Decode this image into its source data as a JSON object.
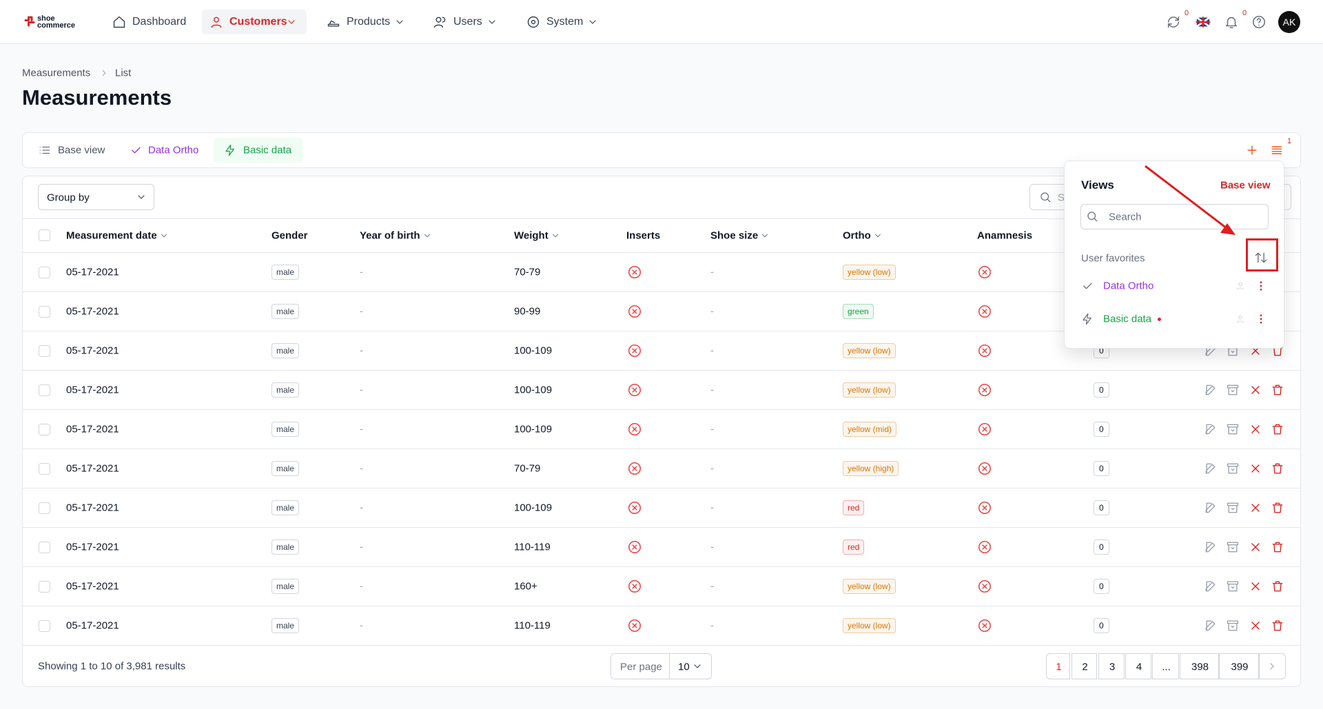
{
  "nav": {
    "logo": "shoe commerce",
    "items": [
      "Dashboard",
      "Customers",
      "Products",
      "Users",
      "System"
    ],
    "badges": [
      "0",
      "0"
    ],
    "avatar": "AK"
  },
  "breadcrumb": [
    "Measurements",
    "List"
  ],
  "title": "Measurements",
  "tabs": [
    "Base view",
    "Data Ortho",
    "Basic data"
  ],
  "tab_badge": "1",
  "group_by": "Group by",
  "table_search": "Search",
  "table": {
    "columns": [
      {
        "label": "Measurement date",
        "sortable": true
      },
      {
        "label": "Gender",
        "sortable": false
      },
      {
        "label": "Year of birth",
        "sortable": true
      },
      {
        "label": "Weight",
        "sortable": true
      },
      {
        "label": "Inserts",
        "sortable": false
      },
      {
        "label": "Shoe size",
        "sortable": true
      },
      {
        "label": "Ortho",
        "sortable": true
      },
      {
        "label": "Anamnesis",
        "sortable": false
      }
    ],
    "rows": [
      {
        "date": "05-17-2021",
        "gender": "male",
        "year": "-",
        "weight": "70-79",
        "shoe": "-",
        "ortho": "yellow (low)",
        "ortho_color": "#d97706",
        "count": null
      },
      {
        "date": "05-17-2021",
        "gender": "male",
        "year": "-",
        "weight": "90-99",
        "shoe": "-",
        "ortho": "green",
        "ortho_color": "#16a34a",
        "count": null
      },
      {
        "date": "05-17-2021",
        "gender": "male",
        "year": "-",
        "weight": "100-109",
        "shoe": "-",
        "ortho": "yellow (low)",
        "ortho_color": "#d97706",
        "count": "0"
      },
      {
        "date": "05-17-2021",
        "gender": "male",
        "year": "-",
        "weight": "100-109",
        "shoe": "-",
        "ortho": "yellow (low)",
        "ortho_color": "#d97706",
        "count": "0"
      },
      {
        "date": "05-17-2021",
        "gender": "male",
        "year": "-",
        "weight": "100-109",
        "shoe": "-",
        "ortho": "yellow (mid)",
        "ortho_color": "#d97706",
        "count": "0"
      },
      {
        "date": "05-17-2021",
        "gender": "male",
        "year": "-",
        "weight": "70-79",
        "shoe": "-",
        "ortho": "yellow (high)",
        "ortho_color": "#d97706",
        "count": "0"
      },
      {
        "date": "05-17-2021",
        "gender": "male",
        "year": "-",
        "weight": "100-109",
        "shoe": "-",
        "ortho": "red",
        "ortho_color": "#dc2626",
        "count": "0"
      },
      {
        "date": "05-17-2021",
        "gender": "male",
        "year": "-",
        "weight": "110-119",
        "shoe": "-",
        "ortho": "red",
        "ortho_color": "#dc2626",
        "count": "0"
      },
      {
        "date": "05-17-2021",
        "gender": "male",
        "year": "-",
        "weight": "160+",
        "shoe": "-",
        "ortho": "yellow (low)",
        "ortho_color": "#d97706",
        "count": "0"
      },
      {
        "date": "05-17-2021",
        "gender": "male",
        "year": "-",
        "weight": "110-119",
        "shoe": "-",
        "ortho": "yellow (low)",
        "ortho_color": "#d97706",
        "count": "0"
      }
    ]
  },
  "footer": {
    "showing": "Showing 1 to 10 of 3,981 results",
    "per_page_label": "Per page",
    "per_page": "10",
    "pages": [
      "1",
      "2",
      "3",
      "4",
      "...",
      "398",
      "399"
    ]
  },
  "views": {
    "title": "Views",
    "base_view": "Base view",
    "search": "Search",
    "section": "User favorites",
    "items": [
      "Data Ortho",
      "Basic data"
    ]
  }
}
